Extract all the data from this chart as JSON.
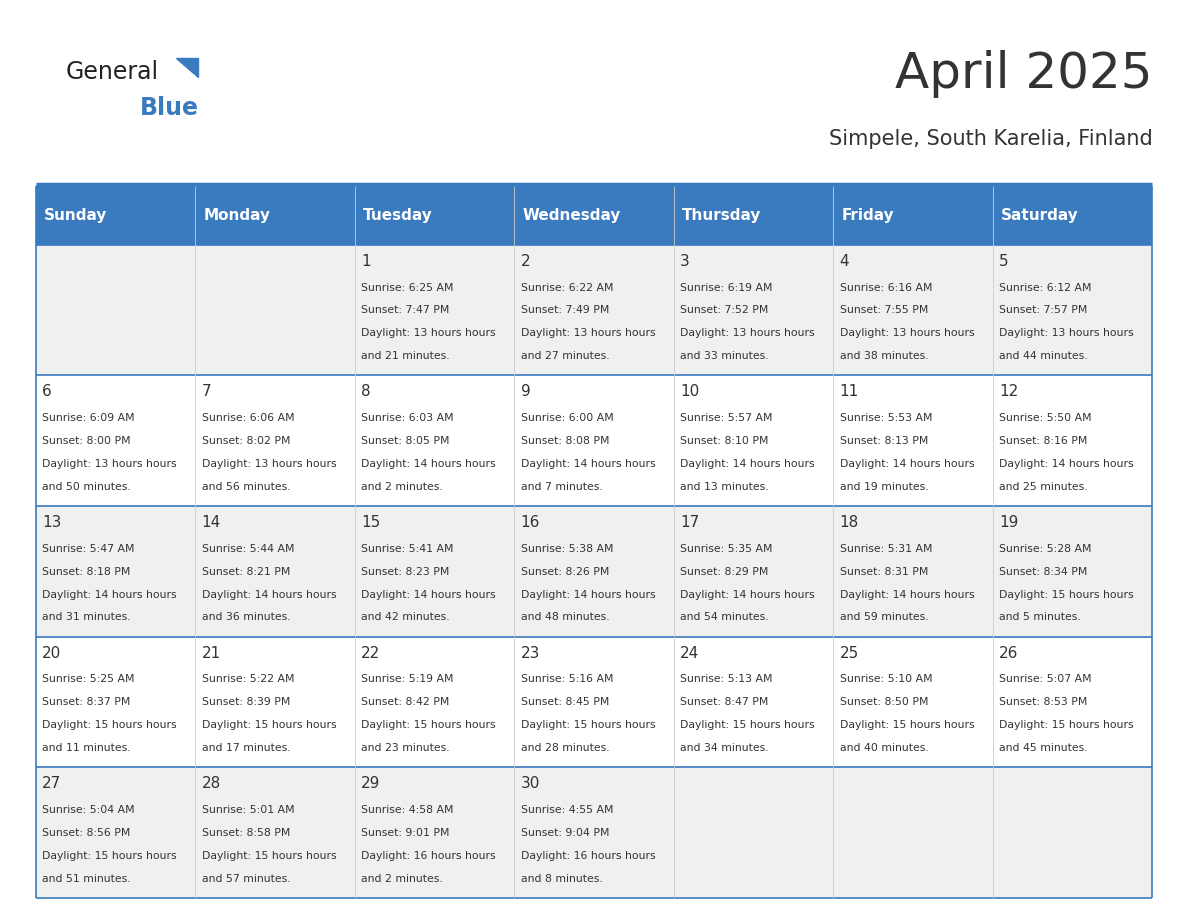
{
  "title": "April 2025",
  "subtitle": "Simpele, South Karelia, Finland",
  "header_bg": "#3a7abf",
  "header_text_color": "#ffffff",
  "row_bg_odd": "#f0f0f0",
  "row_bg_even": "#ffffff",
  "border_color": "#3a7abf",
  "row_divider_color": "#3a7abf",
  "col_divider_color": "#cccccc",
  "day_headers": [
    "Sunday",
    "Monday",
    "Tuesday",
    "Wednesday",
    "Thursday",
    "Friday",
    "Saturday"
  ],
  "days": [
    {
      "date": 0,
      "col": 0,
      "row": 0,
      "sunrise": "",
      "sunset": "",
      "daylight": ""
    },
    {
      "date": 0,
      "col": 1,
      "row": 0,
      "sunrise": "",
      "sunset": "",
      "daylight": ""
    },
    {
      "date": 1,
      "col": 2,
      "row": 0,
      "sunrise": "6:25 AM",
      "sunset": "7:47 PM",
      "daylight": "13 hours and 21 minutes."
    },
    {
      "date": 2,
      "col": 3,
      "row": 0,
      "sunrise": "6:22 AM",
      "sunset": "7:49 PM",
      "daylight": "13 hours and 27 minutes."
    },
    {
      "date": 3,
      "col": 4,
      "row": 0,
      "sunrise": "6:19 AM",
      "sunset": "7:52 PM",
      "daylight": "13 hours and 33 minutes."
    },
    {
      "date": 4,
      "col": 5,
      "row": 0,
      "sunrise": "6:16 AM",
      "sunset": "7:55 PM",
      "daylight": "13 hours and 38 minutes."
    },
    {
      "date": 5,
      "col": 6,
      "row": 0,
      "sunrise": "6:12 AM",
      "sunset": "7:57 PM",
      "daylight": "13 hours and 44 minutes."
    },
    {
      "date": 6,
      "col": 0,
      "row": 1,
      "sunrise": "6:09 AM",
      "sunset": "8:00 PM",
      "daylight": "13 hours and 50 minutes."
    },
    {
      "date": 7,
      "col": 1,
      "row": 1,
      "sunrise": "6:06 AM",
      "sunset": "8:02 PM",
      "daylight": "13 hours and 56 minutes."
    },
    {
      "date": 8,
      "col": 2,
      "row": 1,
      "sunrise": "6:03 AM",
      "sunset": "8:05 PM",
      "daylight": "14 hours and 2 minutes."
    },
    {
      "date": 9,
      "col": 3,
      "row": 1,
      "sunrise": "6:00 AM",
      "sunset": "8:08 PM",
      "daylight": "14 hours and 7 minutes."
    },
    {
      "date": 10,
      "col": 4,
      "row": 1,
      "sunrise": "5:57 AM",
      "sunset": "8:10 PM",
      "daylight": "14 hours and 13 minutes."
    },
    {
      "date": 11,
      "col": 5,
      "row": 1,
      "sunrise": "5:53 AM",
      "sunset": "8:13 PM",
      "daylight": "14 hours and 19 minutes."
    },
    {
      "date": 12,
      "col": 6,
      "row": 1,
      "sunrise": "5:50 AM",
      "sunset": "8:16 PM",
      "daylight": "14 hours and 25 minutes."
    },
    {
      "date": 13,
      "col": 0,
      "row": 2,
      "sunrise": "5:47 AM",
      "sunset": "8:18 PM",
      "daylight": "14 hours and 31 minutes."
    },
    {
      "date": 14,
      "col": 1,
      "row": 2,
      "sunrise": "5:44 AM",
      "sunset": "8:21 PM",
      "daylight": "14 hours and 36 minutes."
    },
    {
      "date": 15,
      "col": 2,
      "row": 2,
      "sunrise": "5:41 AM",
      "sunset": "8:23 PM",
      "daylight": "14 hours and 42 minutes."
    },
    {
      "date": 16,
      "col": 3,
      "row": 2,
      "sunrise": "5:38 AM",
      "sunset": "8:26 PM",
      "daylight": "14 hours and 48 minutes."
    },
    {
      "date": 17,
      "col": 4,
      "row": 2,
      "sunrise": "5:35 AM",
      "sunset": "8:29 PM",
      "daylight": "14 hours and 54 minutes."
    },
    {
      "date": 18,
      "col": 5,
      "row": 2,
      "sunrise": "5:31 AM",
      "sunset": "8:31 PM",
      "daylight": "14 hours and 59 minutes."
    },
    {
      "date": 19,
      "col": 6,
      "row": 2,
      "sunrise": "5:28 AM",
      "sunset": "8:34 PM",
      "daylight": "15 hours and 5 minutes."
    },
    {
      "date": 20,
      "col": 0,
      "row": 3,
      "sunrise": "5:25 AM",
      "sunset": "8:37 PM",
      "daylight": "15 hours and 11 minutes."
    },
    {
      "date": 21,
      "col": 1,
      "row": 3,
      "sunrise": "5:22 AM",
      "sunset": "8:39 PM",
      "daylight": "15 hours and 17 minutes."
    },
    {
      "date": 22,
      "col": 2,
      "row": 3,
      "sunrise": "5:19 AM",
      "sunset": "8:42 PM",
      "daylight": "15 hours and 23 minutes."
    },
    {
      "date": 23,
      "col": 3,
      "row": 3,
      "sunrise": "5:16 AM",
      "sunset": "8:45 PM",
      "daylight": "15 hours and 28 minutes."
    },
    {
      "date": 24,
      "col": 4,
      "row": 3,
      "sunrise": "5:13 AM",
      "sunset": "8:47 PM",
      "daylight": "15 hours and 34 minutes."
    },
    {
      "date": 25,
      "col": 5,
      "row": 3,
      "sunrise": "5:10 AM",
      "sunset": "8:50 PM",
      "daylight": "15 hours and 40 minutes."
    },
    {
      "date": 26,
      "col": 6,
      "row": 3,
      "sunrise": "5:07 AM",
      "sunset": "8:53 PM",
      "daylight": "15 hours and 45 minutes."
    },
    {
      "date": 27,
      "col": 0,
      "row": 4,
      "sunrise": "5:04 AM",
      "sunset": "8:56 PM",
      "daylight": "15 hours and 51 minutes."
    },
    {
      "date": 28,
      "col": 1,
      "row": 4,
      "sunrise": "5:01 AM",
      "sunset": "8:58 PM",
      "daylight": "15 hours and 57 minutes."
    },
    {
      "date": 29,
      "col": 2,
      "row": 4,
      "sunrise": "4:58 AM",
      "sunset": "9:01 PM",
      "daylight": "16 hours and 2 minutes."
    },
    {
      "date": 30,
      "col": 3,
      "row": 4,
      "sunrise": "4:55 AM",
      "sunset": "9:04 PM",
      "daylight": "16 hours and 8 minutes."
    },
    {
      "date": 0,
      "col": 4,
      "row": 4,
      "sunrise": "",
      "sunset": "",
      "daylight": ""
    },
    {
      "date": 0,
      "col": 5,
      "row": 4,
      "sunrise": "",
      "sunset": "",
      "daylight": ""
    },
    {
      "date": 0,
      "col": 6,
      "row": 4,
      "sunrise": "",
      "sunset": "",
      "daylight": ""
    }
  ]
}
